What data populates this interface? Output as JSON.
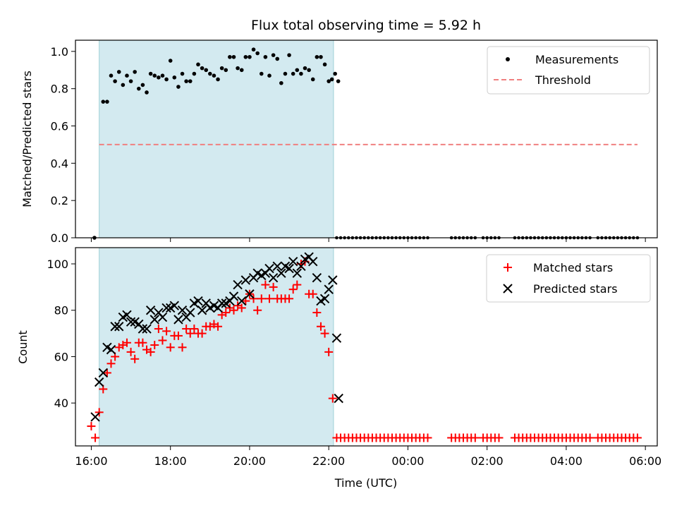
{
  "chart_data": [
    {
      "type": "scatter",
      "title": "Flux total observing time = 5.92 h",
      "xlabel": "",
      "ylabel": "Matched/Predicted stars",
      "ylim": [
        0,
        1.06
      ],
      "yticks": [
        0.0,
        0.2,
        0.4,
        0.6,
        0.8,
        1.0
      ],
      "ytick_labels": [
        "0.0",
        "0.2",
        "0.4",
        "0.6",
        "0.8",
        "1.0"
      ],
      "xlim_hours": [
        15.6,
        30.3
      ],
      "shaded_span_hours": [
        16.2,
        22.12
      ],
      "threshold": {
        "value": 0.5,
        "x_from": 16.2,
        "x_to": 29.8
      },
      "series": [
        {
          "name": "Measurements",
          "x": [
            16.08,
            16.3,
            16.4,
            16.5,
            16.6,
            16.7,
            16.8,
            16.9,
            17.0,
            17.1,
            17.2,
            17.3,
            17.4,
            17.5,
            17.6,
            17.7,
            17.8,
            17.9,
            18.0,
            18.1,
            18.2,
            18.3,
            18.4,
            18.5,
            18.6,
            18.7,
            18.8,
            18.9,
            19.0,
            19.1,
            19.2,
            19.3,
            19.4,
            19.5,
            19.6,
            19.7,
            19.8,
            19.9,
            20.0,
            20.1,
            20.2,
            20.3,
            20.4,
            20.5,
            20.6,
            20.7,
            20.8,
            20.9,
            21.0,
            21.1,
            21.2,
            21.3,
            21.4,
            21.5,
            21.6,
            21.7,
            21.8,
            21.9,
            22.0,
            22.08,
            22.16,
            22.24
          ],
          "y": [
            0.0,
            0.73,
            0.73,
            0.87,
            0.84,
            0.89,
            0.82,
            0.87,
            0.84,
            0.89,
            0.8,
            0.82,
            0.78,
            0.88,
            0.87,
            0.86,
            0.87,
            0.85,
            0.95,
            0.86,
            0.81,
            0.88,
            0.84,
            0.84,
            0.88,
            0.93,
            0.91,
            0.9,
            0.88,
            0.87,
            0.85,
            0.91,
            0.9,
            0.97,
            0.97,
            0.91,
            0.9,
            0.97,
            0.97,
            1.01,
            0.99,
            0.88,
            0.97,
            0.87,
            0.98,
            0.96,
            0.83,
            0.88,
            0.98,
            0.88,
            0.9,
            0.88,
            0.91,
            0.9,
            0.85,
            0.97,
            0.97,
            0.93,
            0.84,
            0.85,
            0.88,
            0.84
          ]
        },
        {
          "name": "Threshold",
          "x": [
            16.2,
            29.8
          ],
          "y": [
            0.5,
            0.5
          ]
        }
      ],
      "tail_zero_segments_hours": [
        [
          22.2,
          23.2
        ],
        [
          23.3,
          23.9
        ],
        [
          24.0,
          24.5
        ],
        [
          25.1,
          25.7
        ],
        [
          25.9,
          26.3
        ],
        [
          26.7,
          27.4
        ],
        [
          27.5,
          28.1
        ],
        [
          28.2,
          28.6
        ],
        [
          28.8,
          29.2
        ],
        [
          29.3,
          29.8
        ]
      ],
      "legend": [
        "Measurements",
        "Threshold"
      ],
      "legend_position": "top-right"
    },
    {
      "type": "scatter",
      "title": "",
      "xlabel": "Time (UTC)",
      "ylabel": "Count",
      "ylim": [
        21.5,
        107
      ],
      "yticks": [
        40,
        60,
        80,
        100
      ],
      "ytick_labels": [
        "40",
        "60",
        "80",
        "100"
      ],
      "xlim_hours": [
        15.6,
        30.3
      ],
      "xticks_hours": [
        16,
        18,
        20,
        22,
        24,
        26,
        28,
        30
      ],
      "xtick_labels": [
        "16:00",
        "18:00",
        "20:00",
        "22:00",
        "00:00",
        "02:00",
        "04:00",
        "06:00"
      ],
      "shaded_span_hours": [
        16.2,
        22.12
      ],
      "series": [
        {
          "name": "Matched stars",
          "marker": "+",
          "x": [
            16.0,
            16.1,
            16.2,
            16.3,
            16.4,
            16.5,
            16.6,
            16.7,
            16.8,
            16.9,
            17.0,
            17.1,
            17.2,
            17.3,
            17.4,
            17.5,
            17.6,
            17.7,
            17.8,
            17.9,
            18.0,
            18.1,
            18.2,
            18.3,
            18.4,
            18.5,
            18.6,
            18.7,
            18.8,
            18.9,
            19.0,
            19.1,
            19.2,
            19.3,
            19.4,
            19.5,
            19.6,
            19.7,
            19.8,
            19.9,
            20.0,
            20.1,
            20.2,
            20.3,
            20.4,
            20.5,
            20.6,
            20.7,
            20.8,
            20.9,
            21.0,
            21.1,
            21.2,
            21.3,
            21.4,
            21.5,
            21.6,
            21.7,
            21.8,
            21.9,
            22.0,
            22.1
          ],
          "y": [
            30,
            25,
            36,
            46,
            53,
            57,
            60,
            64,
            65,
            66,
            62,
            59,
            66,
            66,
            63,
            62,
            65,
            72,
            67,
            71,
            64,
            69,
            69,
            64,
            72,
            70,
            72,
            70,
            70,
            73,
            73,
            74,
            73,
            78,
            79,
            81,
            80,
            82,
            81,
            84,
            87,
            85,
            80,
            85,
            91,
            85,
            90,
            85,
            85,
            85,
            85,
            89,
            91,
            100,
            101,
            87,
            87,
            79,
            73,
            70,
            62,
            42
          ]
        },
        {
          "name": "Predicted stars",
          "marker": "x",
          "x": [
            16.1,
            16.2,
            16.3,
            16.4,
            16.5,
            16.6,
            16.7,
            16.8,
            16.9,
            17.0,
            17.1,
            17.2,
            17.3,
            17.4,
            17.5,
            17.6,
            17.7,
            17.8,
            17.9,
            18.0,
            18.1,
            18.2,
            18.3,
            18.4,
            18.5,
            18.6,
            18.7,
            18.8,
            18.9,
            19.0,
            19.1,
            19.2,
            19.3,
            19.4,
            19.5,
            19.6,
            19.7,
            19.8,
            19.9,
            20.0,
            20.1,
            20.2,
            20.3,
            20.4,
            20.5,
            20.6,
            20.7,
            20.8,
            20.9,
            21.0,
            21.1,
            21.2,
            21.3,
            21.4,
            21.5,
            21.6,
            21.7,
            21.8,
            21.9,
            22.0,
            22.1,
            22.2
          ],
          "y": [
            34,
            49,
            53,
            64,
            63,
            73,
            73,
            77,
            78,
            75,
            75,
            74,
            72,
            72,
            80,
            76,
            79,
            77,
            81,
            81,
            82,
            76,
            80,
            77,
            79,
            83,
            84,
            80,
            83,
            81,
            82,
            81,
            83,
            83,
            84,
            86,
            91,
            84,
            93,
            87,
            94,
            96,
            95,
            96,
            98,
            94,
            99,
            96,
            99,
            98,
            101,
            96,
            99,
            102,
            103,
            101,
            94,
            84,
            85,
            89,
            93,
            68
          ]
        }
      ],
      "tail_matched_value": 25,
      "tail_segments_hours": [
        [
          22.2,
          23.2
        ],
        [
          23.3,
          23.9
        ],
        [
          24.0,
          24.5
        ],
        [
          25.1,
          25.7
        ],
        [
          25.9,
          26.3
        ],
        [
          26.7,
          27.4
        ],
        [
          27.5,
          28.1
        ],
        [
          28.2,
          28.6
        ],
        [
          28.8,
          29.2
        ],
        [
          29.3,
          29.8
        ]
      ],
      "extra_predicted_point": [
        22.25,
        42
      ],
      "legend": [
        "Matched stars",
        "Predicted stars"
      ],
      "legend_position": "top-right"
    }
  ],
  "colors": {
    "shade": "#d3eaf0",
    "measurement": "#000000",
    "threshold": "#f08080",
    "matched": "#ff0000",
    "predicted": "#000000"
  }
}
